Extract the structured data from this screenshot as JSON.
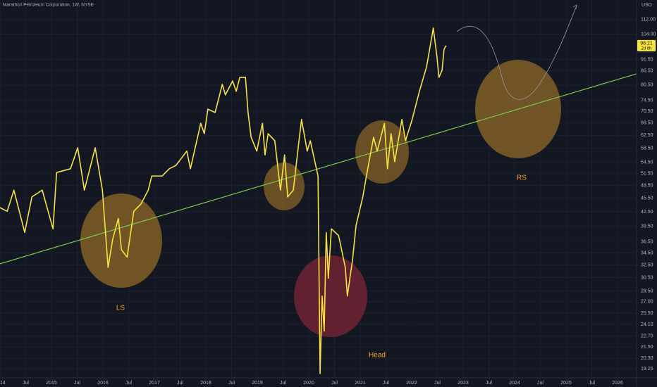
{
  "chart_data": {
    "type": "line",
    "title": "Marathon Petroleum Corporation, 1W, NYSE",
    "currency": "USD",
    "countdown": "2d 6h",
    "annotations": [
      "LS",
      "Head",
      "RS"
    ],
    "log_scale": true,
    "grid": true,
    "xlim": [
      2014,
      2026.37
    ],
    "ylim": [
      18.4,
      123.6
    ],
    "xticks": [
      {
        "value": 2014,
        "label": "14"
      },
      {
        "value": 2014.5,
        "label": "Jul"
      },
      2015,
      {
        "value": 2015.5,
        "label": "Jul"
      },
      2016,
      {
        "value": 2016.5,
        "label": "Jul"
      },
      2017,
      {
        "value": 2017.5,
        "label": "Jul"
      },
      2018,
      {
        "value": 2018.5,
        "label": "Jul"
      },
      2019,
      {
        "value": 2019.5,
        "label": "Jul"
      },
      2020,
      {
        "value": 2020.5,
        "label": "Jul"
      },
      2021,
      {
        "value": 2021.5,
        "label": "Jul"
      },
      2022,
      {
        "value": 2022.5,
        "label": "Jul"
      },
      2023,
      {
        "value": 2023.5,
        "label": "Jul"
      },
      2024,
      {
        "value": 2024.5,
        "label": "Jul"
      },
      2025,
      {
        "value": 2025.5,
        "label": "Jul"
      },
      2026
    ],
    "yticks": [
      {
        "value": 112,
        "label": "112.00"
      },
      {
        "value": 104,
        "label": "104.00"
      },
      {
        "value": 91.5,
        "label": "91.50"
      },
      {
        "value": 86.5,
        "label": "86.50"
      },
      {
        "value": 80.5,
        "label": "80.50"
      },
      {
        "value": 74.5,
        "label": "74.50"
      },
      {
        "value": 70.5,
        "label": "70.50"
      },
      {
        "value": 66.5,
        "label": "66.50"
      },
      {
        "value": 62.5,
        "label": "62.50"
      },
      {
        "value": 58.5,
        "label": "58.50"
      },
      {
        "value": 54.5,
        "label": "54.50"
      },
      {
        "value": 51.5,
        "label": "51.50"
      },
      {
        "value": 48.5,
        "label": "48.50"
      },
      {
        "value": 45.5,
        "label": "45.50"
      },
      {
        "value": 42.5,
        "label": "42.50"
      },
      {
        "value": 39.5,
        "label": "39.50"
      },
      {
        "value": 36.5,
        "label": "36.50"
      },
      {
        "value": 34.5,
        "label": "34.50"
      },
      {
        "value": 32.5,
        "label": "32.50"
      },
      {
        "value": 30.5,
        "label": "30.50"
      },
      {
        "value": 28.5,
        "label": "28.50"
      },
      {
        "value": 27,
        "label": "27.00"
      },
      {
        "value": 25.5,
        "label": "25.50"
      },
      {
        "value": 24.1,
        "label": "24.10"
      },
      {
        "value": 22.7,
        "label": "22.70"
      },
      {
        "value": 21.5,
        "label": "21.50"
      },
      {
        "value": 20.3,
        "label": "20.30"
      },
      {
        "value": 19.25,
        "label": "19.25"
      }
    ],
    "series": [
      {
        "color": "#f7e43a",
        "x": [
          2014.0,
          2014.14,
          2014.27,
          2014.48,
          2014.62,
          2014.82,
          2015.03,
          2015.1,
          2015.37,
          2015.51,
          2015.64,
          2015.85,
          2015.99,
          2016.1,
          2016.19,
          2016.3,
          2016.36,
          2016.47,
          2016.6,
          2016.74,
          2016.88,
          2016.95,
          2017.15,
          2017.29,
          2017.42,
          2017.63,
          2017.7,
          2017.84,
          2017.9,
          2017.97,
          2018.04,
          2018.18,
          2018.32,
          2018.38,
          2018.52,
          2018.59,
          2018.66,
          2018.77,
          2018.82,
          2018.88,
          2018.99,
          2019.1,
          2019.15,
          2019.21,
          2019.34,
          2019.45,
          2019.53,
          2019.59,
          2019.7,
          2019.81,
          2019.86,
          2019.97,
          2020.03,
          2020.18,
          2020.22,
          2020.26,
          2020.3,
          2020.34,
          2020.38,
          2020.44,
          2020.58,
          2020.71,
          2020.75,
          2020.85,
          2020.92,
          2021.05,
          2021.12,
          2021.26,
          2021.33,
          2021.47,
          2021.53,
          2021.6,
          2021.67,
          2021.81,
          2021.88,
          2022.01,
          2022.15,
          2022.29,
          2022.42,
          2022.49,
          2022.53,
          2022.59,
          2022.63,
          2022.67
        ],
        "values": [
          43.4,
          42.6,
          47.4,
          38.3,
          45.8,
          47.4,
          39.0,
          51.8,
          52.8,
          58.7,
          47.4,
          58.7,
          47.4,
          32.1,
          37.0,
          41.1,
          35.1,
          33.8,
          42.6,
          44.2,
          47.4,
          50.9,
          50.9,
          52.8,
          53.7,
          57.7,
          52.8,
          61.9,
          66.4,
          63.0,
          71.3,
          70.1,
          80.8,
          76.6,
          82.2,
          78.0,
          83.7,
          83.7,
          70.1,
          61.9,
          57.7,
          66.4,
          56.6,
          63.0,
          60.8,
          47.4,
          56.6,
          45.8,
          47.4,
          60.8,
          67.7,
          57.7,
          60.8,
          50.9,
          18.8,
          27.8,
          23.3,
          38.3,
          30.4,
          39.0,
          37.7,
          32.1,
          27.8,
          33.3,
          39.7,
          45.8,
          50.9,
          61.9,
          57.7,
          66.4,
          52.8,
          63.0,
          54.7,
          67.7,
          60.8,
          67.7,
          78.0,
          88.3,
          107.3,
          93.1,
          83.7,
          86.7,
          96.5,
          98.21
        ]
      },
      {
        "color": "#7cc94e",
        "x": [
          2014,
          2026.37
        ],
        "values": [
          32.7,
          85.2
        ]
      }
    ]
  }
}
